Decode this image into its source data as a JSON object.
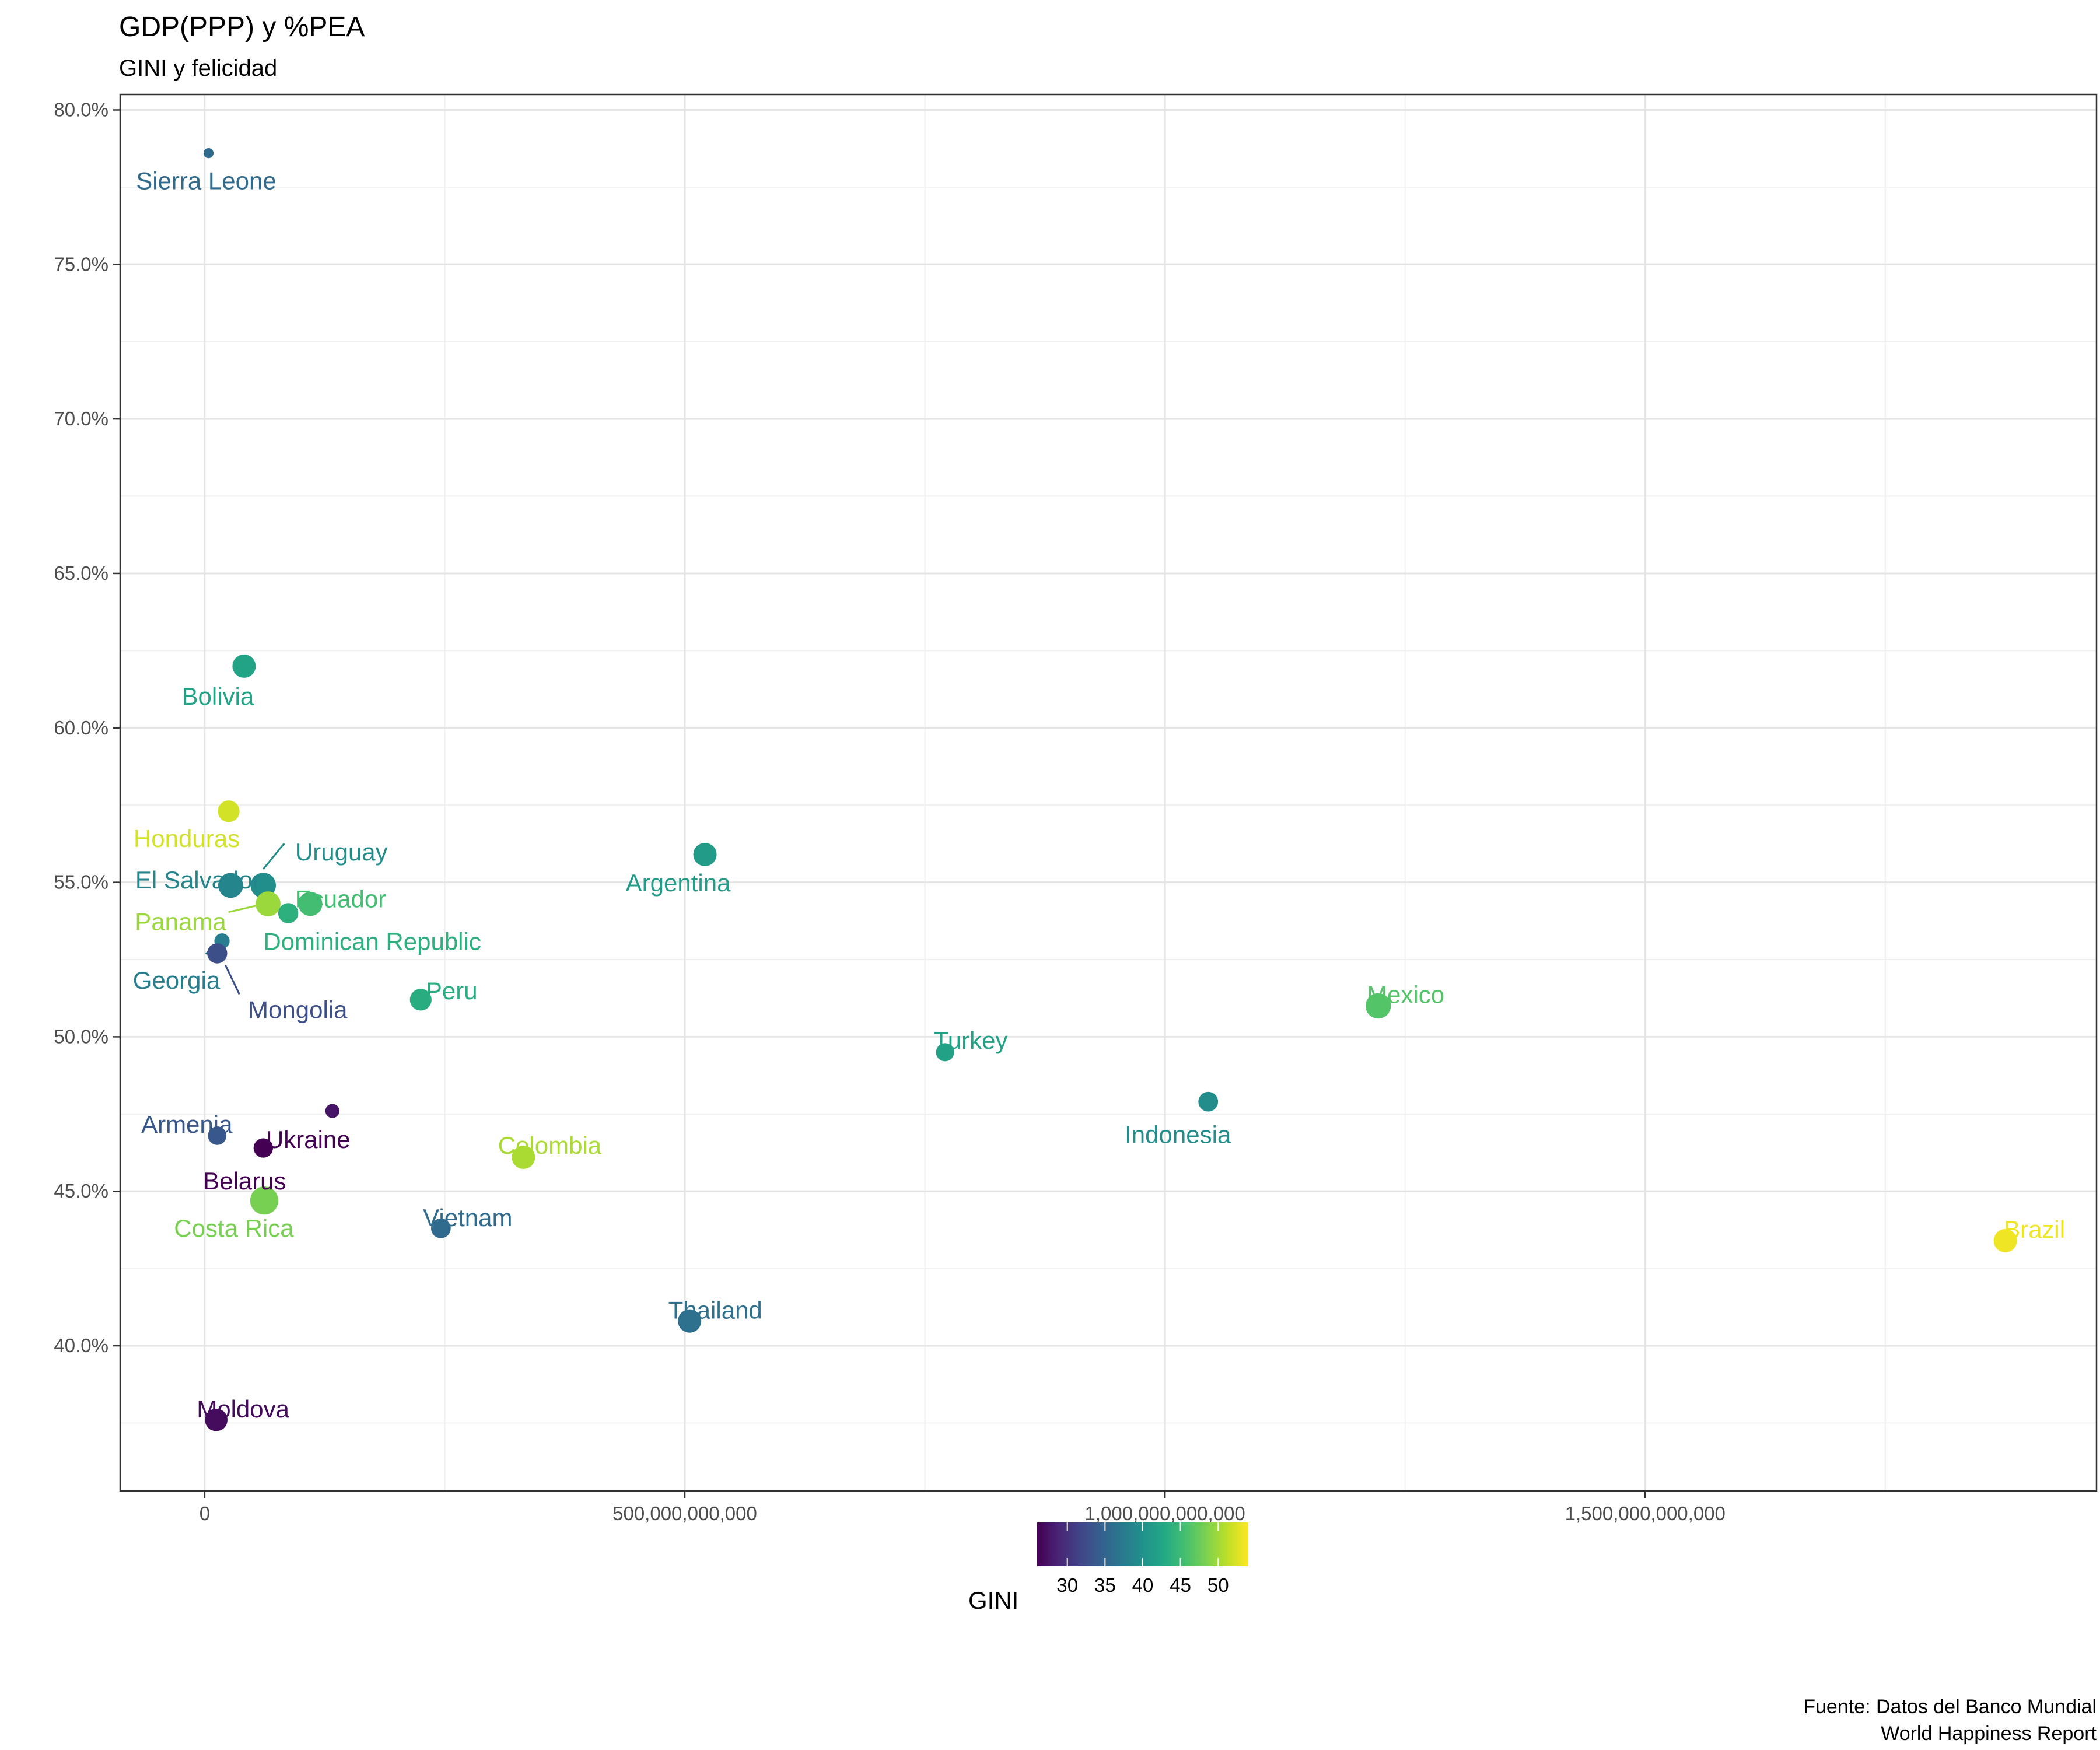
{
  "chart_data": {
    "type": "scatter",
    "title": "GDP(PPP) y %PEA",
    "subtitle": "GINI y felicidad",
    "xlabel": "",
    "ylabel": "",
    "xlim": [
      -88000000000,
      1970000000000
    ],
    "ylim": [
      0.353,
      0.805
    ],
    "x_ticks": [
      0,
      500000000000,
      1000000000000,
      1500000000000
    ],
    "x_tick_labels": [
      "0",
      "500,000,000,000",
      "1,000,000,000,000",
      "1,500,000,000,000"
    ],
    "y_ticks": [
      0.4,
      0.45,
      0.5,
      0.55,
      0.6,
      0.65,
      0.7,
      0.75,
      0.8
    ],
    "y_tick_labels": [
      "40.0%",
      "45.0%",
      "50.0%",
      "55.0%",
      "60.0%",
      "65.0%",
      "70.0%",
      "75.0%",
      "80.0%"
    ],
    "grid": true,
    "legend": {
      "title": "GINI",
      "position": "bottom",
      "range": [
        26,
        54
      ],
      "ticks": [
        30,
        35,
        40,
        45,
        50
      ],
      "tick_labels": [
        "30",
        "35",
        "40",
        "45",
        "50"
      ]
    },
    "caption": [
      "Fuente: Datos del Banco Mundial",
      "World Happiness Report"
    ],
    "points": [
      {
        "country": "Sierra Leone",
        "x": 4000000000,
        "y": 0.786,
        "gini": 35.7,
        "size": 2.5
      },
      {
        "country": "Bolivia",
        "x": 41000000000,
        "y": 0.62,
        "gini": 42.2,
        "size": 5.8
      },
      {
        "country": "Honduras",
        "x": 25000000000,
        "y": 0.573,
        "gini": 52.1,
        "size": 5.4
      },
      {
        "country": "Argentina",
        "x": 521000000000,
        "y": 0.559,
        "gini": 41.4,
        "size": 5.8
      },
      {
        "country": "Uruguay",
        "x": 61000000000,
        "y": 0.549,
        "gini": 39.7,
        "size": 6.3
      },
      {
        "country": "El Salvador",
        "x": 27000000000,
        "y": 0.549,
        "gini": 38.6,
        "size": 6.2
      },
      {
        "country": "Panama",
        "x": 66000000000,
        "y": 0.543,
        "gini": 49.8,
        "size": 6.2
      },
      {
        "country": "Ecuador",
        "x": 110000000000,
        "y": 0.543,
        "gini": 45.4,
        "size": 6.0
      },
      {
        "country": "Dominican Republic",
        "x": 87000000000,
        "y": 0.54,
        "gini": 43.7,
        "size": 5.0
      },
      {
        "country": "Georgia",
        "x": 18000000000,
        "y": 0.531,
        "gini": 37.9,
        "size": 3.8
      },
      {
        "country": "Mongolia",
        "x": 13000000000,
        "y": 0.527,
        "gini": 32.7,
        "size": 5.0
      },
      {
        "country": "Peru",
        "x": 225000000000,
        "y": 0.512,
        "gini": 43.3,
        "size": 5.4
      },
      {
        "country": "Mexico",
        "x": 1222000000000,
        "y": 0.51,
        "gini": 46.4,
        "size": 6.3
      },
      {
        "country": "Turkey",
        "x": 771000000000,
        "y": 0.495,
        "gini": 41.9,
        "size": 4.5
      },
      {
        "country": "Indonesia",
        "x": 1045000000000,
        "y": 0.479,
        "gini": 39.5,
        "size": 4.9
      },
      {
        "country": "",
        "x": 133000000000,
        "y": 0.476,
        "gini": 27.5,
        "size": 3.5
      },
      {
        "country": "Armenia",
        "x": 13000000000,
        "y": 0.468,
        "gini": 33.6,
        "size": 4.6
      },
      {
        "country": "Ukraine",
        "x": 61000000000,
        "y": 0.464,
        "gini": 26.1,
        "size": 4.8
      },
      {
        "country": "Colombia",
        "x": 332000000000,
        "y": 0.461,
        "gini": 50.4,
        "size": 5.8
      },
      {
        "country": "Belarus",
        "x": 61000000000,
        "y": 0.464,
        "gini": 25.4,
        "size": 4.8
      },
      {
        "country": "Costa Rica",
        "x": 62000000000,
        "y": 0.447,
        "gini": 48.3,
        "size": 7.0
      },
      {
        "country": "Vietnam",
        "x": 246000000000,
        "y": 0.438,
        "gini": 35.7,
        "size": 4.9
      },
      {
        "country": "Brazil",
        "x": 1875000000000,
        "y": 0.434,
        "gini": 53.4,
        "size": 5.8
      },
      {
        "country": "Thailand",
        "x": 505000000000,
        "y": 0.408,
        "gini": 36.4,
        "size": 5.8
      },
      {
        "country": "Moldova",
        "x": 12000000000,
        "y": 0.376,
        "gini": 26.8,
        "size": 5.6
      }
    ]
  }
}
